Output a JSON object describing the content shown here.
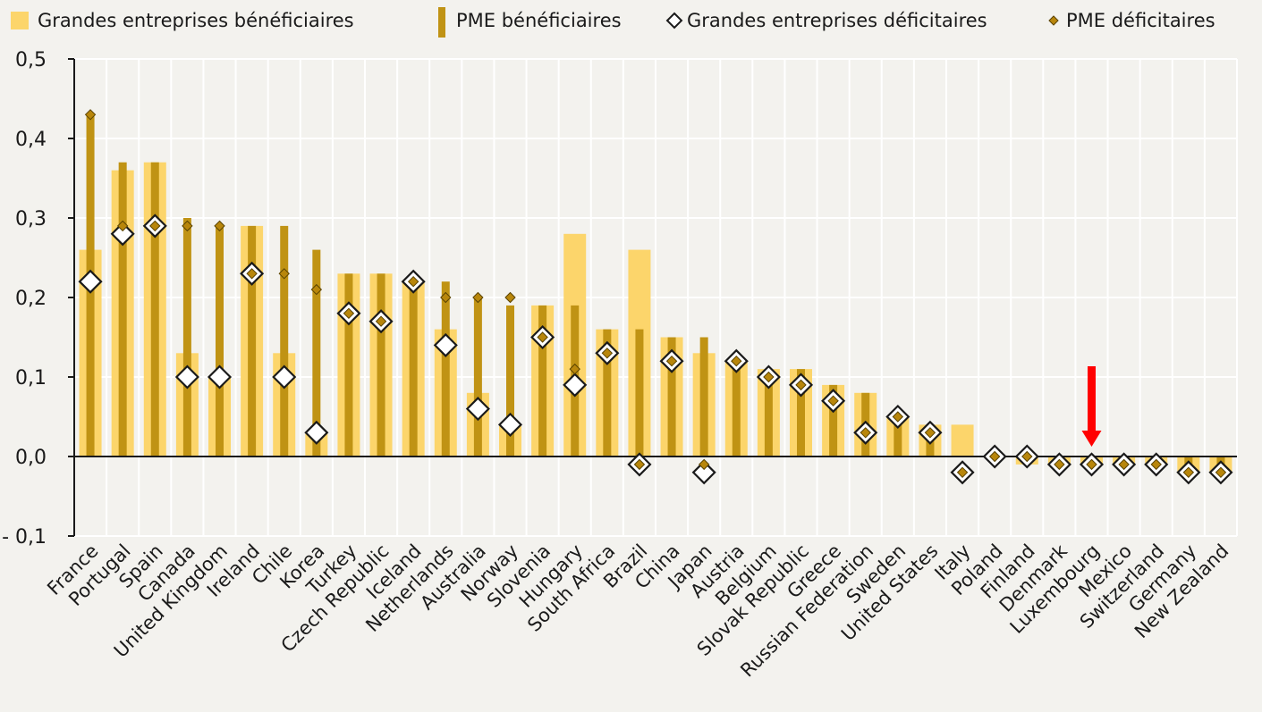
{
  "chart_data": {
    "type": "bar",
    "title": "",
    "xlabel": "",
    "ylabel": "",
    "ylim": [
      -0.1,
      0.5
    ],
    "y_ticks": [
      {
        "value": 0.5,
        "label": "0,5"
      },
      {
        "value": 0.4,
        "label": "0,4"
      },
      {
        "value": 0.3,
        "label": "0,3"
      },
      {
        "value": 0.2,
        "label": "0,2"
      },
      {
        "value": 0.1,
        "label": "0,1"
      },
      {
        "value": 0.0,
        "label": "0,0"
      },
      {
        "value": -0.1,
        "label": "- 0,1"
      }
    ],
    "grid": "horizontal",
    "legend_position": "top",
    "categories": [
      "France",
      "Portugal",
      "Spain",
      "Canada",
      "United Kingdom",
      "Ireland",
      "Chile",
      "Korea",
      "Turkey",
      "Czech Republic",
      "Iceland",
      "Netherlands",
      "Australia",
      "Norway",
      "Slovenia",
      "Hungary",
      "South Africa",
      "Brazil",
      "China",
      "Japan",
      "Austria",
      "Belgium",
      "Slovak Republic",
      "Greece",
      "Russian Federation",
      "Sweden",
      "United States",
      "Italy",
      "Poland",
      "Finland",
      "Denmark",
      "Luxembourg",
      "Mexico",
      "Switzerland",
      "Germany",
      "New Zealand"
    ],
    "series": [
      {
        "name": "Grandes entreprises bénéficiaires",
        "kind": "wide-bar",
        "color": "#fcd56b",
        "values": [
          0.26,
          0.36,
          0.37,
          0.13,
          0.1,
          0.29,
          0.13,
          0.03,
          0.23,
          0.23,
          0.22,
          0.16,
          0.08,
          0.04,
          0.19,
          0.28,
          0.16,
          0.26,
          0.15,
          0.13,
          0.12,
          0.11,
          0.11,
          0.09,
          0.08,
          0.05,
          0.04,
          0.04,
          0.0,
          -0.01,
          -0.01,
          -0.01,
          -0.01,
          -0.01,
          -0.02,
          -0.02
        ]
      },
      {
        "name": "PME bénéficiaires",
        "kind": "narrow-bar",
        "color": "#c09314",
        "values": [
          0.43,
          0.37,
          0.37,
          0.3,
          0.29,
          0.29,
          0.29,
          0.26,
          0.23,
          0.23,
          0.22,
          0.22,
          0.2,
          0.19,
          0.19,
          0.19,
          0.16,
          0.16,
          0.15,
          0.15,
          0.12,
          0.11,
          0.11,
          0.09,
          0.08,
          0.05,
          0.03,
          0.0,
          0.0,
          0.0,
          -0.01,
          -0.01,
          -0.01,
          -0.01,
          -0.02,
          -0.02
        ]
      },
      {
        "name": "Grandes entreprises déficitaires",
        "kind": "large-diamond",
        "color": "#ffffff",
        "values": [
          0.22,
          0.28,
          0.29,
          0.1,
          0.1,
          0.23,
          0.1,
          0.03,
          0.18,
          0.17,
          0.22,
          0.14,
          0.06,
          0.04,
          0.15,
          0.09,
          0.13,
          -0.01,
          0.12,
          -0.02,
          0.12,
          0.1,
          0.09,
          0.07,
          0.03,
          0.05,
          0.03,
          -0.02,
          0.0,
          0.0,
          -0.01,
          -0.01,
          -0.01,
          -0.01,
          -0.02,
          -0.02
        ]
      },
      {
        "name": "PME déficitaires",
        "kind": "small-diamond",
        "color": "#b8860b",
        "values": [
          0.43,
          0.29,
          0.29,
          0.29,
          0.29,
          0.23,
          0.23,
          0.21,
          0.18,
          0.17,
          0.22,
          0.2,
          0.2,
          0.2,
          0.15,
          0.11,
          0.13,
          -0.01,
          0.12,
          -0.01,
          0.12,
          0.1,
          0.09,
          0.07,
          0.03,
          0.05,
          0.03,
          -0.02,
          0.0,
          0.0,
          -0.01,
          -0.01,
          -0.01,
          -0.01,
          -0.02,
          -0.02
        ]
      }
    ],
    "annotation": {
      "type": "red-arrow",
      "category": "Luxembourg",
      "color": "#ff0000"
    }
  }
}
